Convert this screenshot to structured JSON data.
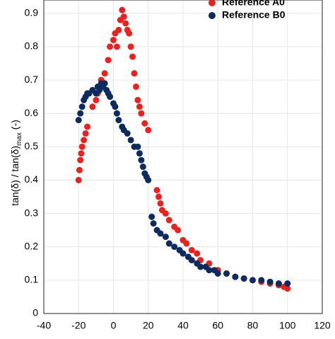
{
  "chart_data": {
    "type": "scatter",
    "y_label": "tan(δ) / tan(δ)",
    "y_label_sub": "max",
    "y_label_tail": " (-)",
    "xlim": [
      -40,
      120
    ],
    "ylim": [
      0,
      0.94
    ],
    "xticks": [
      -40,
      -20,
      0,
      20,
      40,
      60,
      80,
      100,
      120
    ],
    "yticks": [
      0,
      0.1,
      0.2,
      0.3,
      0.4,
      0.5,
      0.6,
      0.7,
      0.8,
      0.9
    ],
    "grid": true,
    "legend": "upper right",
    "series": [
      {
        "name": "Reference A0",
        "color": "#e8221f",
        "x": [
          -20,
          -19.5,
          -19,
          -18.5,
          -18,
          -17,
          -16,
          -15,
          -12,
          -10,
          -9,
          -8,
          -7,
          -5,
          -3,
          -2,
          0,
          1,
          2,
          3,
          4,
          5,
          6,
          7,
          8,
          9,
          10,
          11,
          12,
          13,
          14,
          15,
          16,
          18,
          20,
          25,
          26,
          27,
          28,
          30,
          32,
          35,
          37,
          40,
          42,
          45,
          48,
          50,
          55,
          60,
          65,
          70,
          75,
          80,
          85,
          90,
          95,
          98,
          100
        ],
        "values": [
          0.4,
          0.43,
          0.46,
          0.48,
          0.5,
          0.52,
          0.54,
          0.56,
          0.62,
          0.64,
          0.66,
          0.68,
          0.7,
          0.72,
          0.76,
          0.8,
          0.82,
          0.84,
          0.8,
          0.85,
          0.88,
          0.91,
          0.89,
          0.87,
          0.85,
          0.84,
          0.8,
          0.77,
          0.72,
          0.68,
          0.64,
          0.62,
          0.6,
          0.57,
          0.55,
          0.37,
          0.35,
          0.33,
          0.31,
          0.3,
          0.28,
          0.26,
          0.25,
          0.22,
          0.21,
          0.19,
          0.18,
          0.16,
          0.15,
          0.13,
          0.12,
          0.11,
          0.105,
          0.1,
          0.095,
          0.09,
          0.085,
          0.08,
          0.075
        ]
      },
      {
        "name": "Reference B0",
        "color": "#0d2b5e",
        "x": [
          -20,
          -19,
          -18,
          -17,
          -16,
          -15,
          -14,
          -12,
          -10,
          -9,
          -8,
          -7,
          -6,
          -5,
          -4,
          -3,
          -2,
          0,
          1,
          2,
          3,
          5,
          6,
          8,
          10,
          12,
          14,
          15,
          16,
          17,
          18,
          19,
          20,
          22,
          23,
          25,
          27,
          30,
          32,
          35,
          38,
          40,
          43,
          45,
          48,
          50,
          53,
          55,
          58,
          60,
          65,
          70,
          75,
          80,
          85,
          90,
          95,
          100
        ],
        "values": [
          0.58,
          0.6,
          0.62,
          0.64,
          0.65,
          0.66,
          0.66,
          0.67,
          0.66,
          0.68,
          0.67,
          0.69,
          0.68,
          0.69,
          0.67,
          0.66,
          0.65,
          0.63,
          0.62,
          0.6,
          0.58,
          0.56,
          0.55,
          0.54,
          0.52,
          0.5,
          0.5,
          0.48,
          0.46,
          0.44,
          0.42,
          0.41,
          0.4,
          0.29,
          0.27,
          0.25,
          0.24,
          0.23,
          0.21,
          0.2,
          0.19,
          0.18,
          0.17,
          0.16,
          0.15,
          0.14,
          0.14,
          0.13,
          0.13,
          0.12,
          0.12,
          0.11,
          0.105,
          0.1,
          0.1,
          0.095,
          0.09,
          0.09
        ]
      }
    ]
  }
}
